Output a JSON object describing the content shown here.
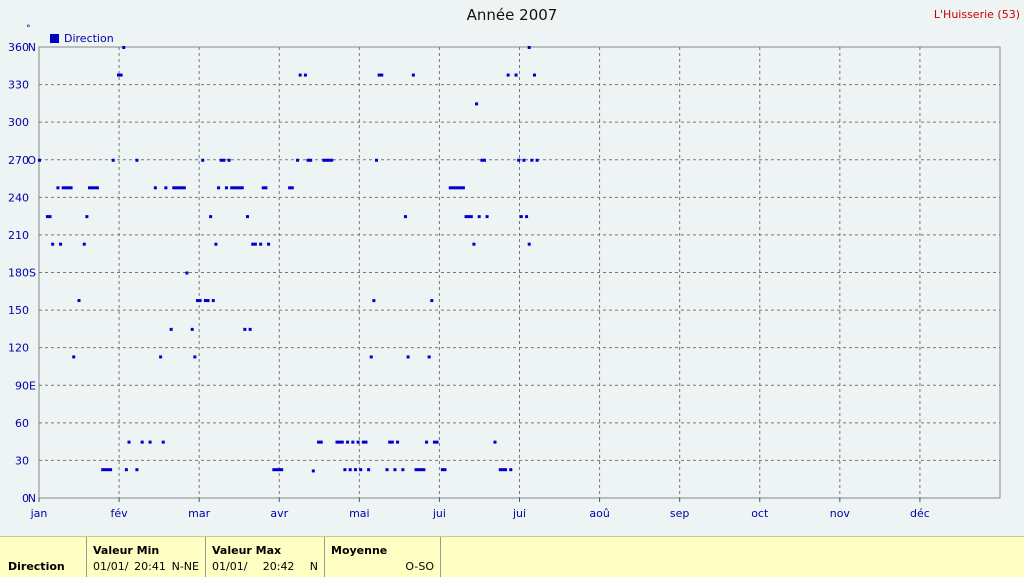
{
  "header": {
    "title": "Année 2007",
    "station": "L'Huisserie (53)",
    "degree_symbol": "°"
  },
  "legend": {
    "label": "Direction",
    "color": "#0000cc"
  },
  "chart_data": {
    "type": "scatter",
    "title": "Année 2007",
    "xlabel": "",
    "ylabel": "°",
    "x_unit": "day of year",
    "xlim": [
      0,
      365
    ],
    "ylim": [
      0,
      360
    ],
    "grid": true,
    "legend_position": "top-left",
    "month_ticks": [
      "jan",
      "fév",
      "mar",
      "avr",
      "mai",
      "jui",
      "jui",
      "aoû",
      "sep",
      "oct",
      "nov",
      "déc"
    ],
    "y_ticks": [
      {
        "v": 0,
        "label": "0",
        "dir": "N"
      },
      {
        "v": 30,
        "label": "30",
        "dir": ""
      },
      {
        "v": 60,
        "label": "60",
        "dir": ""
      },
      {
        "v": 90,
        "label": "90",
        "dir": "E"
      },
      {
        "v": 120,
        "label": "120",
        "dir": ""
      },
      {
        "v": 150,
        "label": "150",
        "dir": ""
      },
      {
        "v": 180,
        "label": "180",
        "dir": "S"
      },
      {
        "v": 210,
        "label": "210",
        "dir": ""
      },
      {
        "v": 240,
        "label": "240",
        "dir": ""
      },
      {
        "v": 270,
        "label": "270",
        "dir": "O"
      },
      {
        "v": 300,
        "label": "300",
        "dir": ""
      },
      {
        "v": 330,
        "label": "330",
        "dir": ""
      },
      {
        "v": 360,
        "label": "360",
        "dir": "N"
      }
    ],
    "series": [
      {
        "name": "Direction",
        "color": "#0000cc",
        "points": [
          [
            0,
            270
          ],
          [
            3,
            225
          ],
          [
            4,
            225
          ],
          [
            5,
            203
          ],
          [
            7,
            248
          ],
          [
            8,
            203
          ],
          [
            9,
            248
          ],
          [
            10,
            248
          ],
          [
            11,
            248
          ],
          [
            12,
            248
          ],
          [
            13,
            113
          ],
          [
            15,
            158
          ],
          [
            17,
            203
          ],
          [
            18,
            225
          ],
          [
            19,
            248
          ],
          [
            20,
            248
          ],
          [
            21,
            248
          ],
          [
            22,
            248
          ],
          [
            24,
            23
          ],
          [
            25,
            23
          ],
          [
            26,
            23
          ],
          [
            27,
            23
          ],
          [
            28,
            270
          ],
          [
            30,
            338
          ],
          [
            31,
            338
          ],
          [
            32,
            360
          ],
          [
            33,
            23
          ],
          [
            34,
            45
          ],
          [
            37,
            23
          ],
          [
            37,
            270
          ],
          [
            39,
            45
          ],
          [
            42,
            45
          ],
          [
            44,
            248
          ],
          [
            46,
            113
          ],
          [
            47,
            45
          ],
          [
            48,
            248
          ],
          [
            50,
            135
          ],
          [
            51,
            248
          ],
          [
            52,
            248
          ],
          [
            53,
            248
          ],
          [
            54,
            248
          ],
          [
            55,
            248
          ],
          [
            56,
            180
          ],
          [
            58,
            135
          ],
          [
            59,
            113
          ],
          [
            60,
            158
          ],
          [
            61,
            158
          ],
          [
            62,
            270
          ],
          [
            63,
            158
          ],
          [
            64,
            158
          ],
          [
            65,
            225
          ],
          [
            66,
            158
          ],
          [
            67,
            203
          ],
          [
            68,
            248
          ],
          [
            69,
            270
          ],
          [
            70,
            270
          ],
          [
            71,
            248
          ],
          [
            72,
            270
          ],
          [
            73,
            248
          ],
          [
            74,
            248
          ],
          [
            75,
            248
          ],
          [
            76,
            248
          ],
          [
            77,
            248
          ],
          [
            78,
            135
          ],
          [
            79,
            225
          ],
          [
            80,
            135
          ],
          [
            81,
            203
          ],
          [
            82,
            203
          ],
          [
            84,
            203
          ],
          [
            85,
            248
          ],
          [
            86,
            248
          ],
          [
            87,
            203
          ],
          [
            89,
            23
          ],
          [
            90,
            23
          ],
          [
            91,
            23
          ],
          [
            92,
            23
          ],
          [
            95,
            248
          ],
          [
            96,
            248
          ],
          [
            98,
            270
          ],
          [
            99,
            338
          ],
          [
            101,
            338
          ],
          [
            102,
            270
          ],
          [
            103,
            270
          ],
          [
            104,
            22
          ],
          [
            106,
            45
          ],
          [
            107,
            45
          ],
          [
            108,
            270
          ],
          [
            109,
            270
          ],
          [
            110,
            270
          ],
          [
            111,
            270
          ],
          [
            113,
            45
          ],
          [
            114,
            45
          ],
          [
            115,
            45
          ],
          [
            116,
            23
          ],
          [
            117,
            45
          ],
          [
            118,
            23
          ],
          [
            119,
            45
          ],
          [
            120,
            23
          ],
          [
            121,
            45
          ],
          [
            122,
            23
          ],
          [
            123,
            45
          ],
          [
            124,
            45
          ],
          [
            125,
            23
          ],
          [
            126,
            113
          ],
          [
            127,
            158
          ],
          [
            128,
            270
          ],
          [
            129,
            338
          ],
          [
            130,
            338
          ],
          [
            132,
            23
          ],
          [
            133,
            45
          ],
          [
            134,
            45
          ],
          [
            135,
            23
          ],
          [
            136,
            45
          ],
          [
            138,
            23
          ],
          [
            139,
            225
          ],
          [
            140,
            113
          ],
          [
            142,
            338
          ],
          [
            143,
            23
          ],
          [
            144,
            23
          ],
          [
            145,
            23
          ],
          [
            146,
            23
          ],
          [
            147,
            45
          ],
          [
            148,
            113
          ],
          [
            149,
            158
          ],
          [
            150,
            45
          ],
          [
            151,
            45
          ],
          [
            153,
            23
          ],
          [
            154,
            23
          ],
          [
            156,
            248
          ],
          [
            157,
            248
          ],
          [
            158,
            248
          ],
          [
            159,
            248
          ],
          [
            160,
            248
          ],
          [
            161,
            248
          ],
          [
            162,
            225
          ],
          [
            163,
            225
          ],
          [
            164,
            225
          ],
          [
            165,
            203
          ],
          [
            166,
            315
          ],
          [
            167,
            225
          ],
          [
            168,
            270
          ],
          [
            169,
            270
          ],
          [
            170,
            225
          ],
          [
            173,
            45
          ],
          [
            175,
            23
          ],
          [
            176,
            23
          ],
          [
            177,
            23
          ],
          [
            178,
            338
          ],
          [
            179,
            23
          ],
          [
            181,
            338
          ],
          [
            182,
            270
          ],
          [
            183,
            225
          ],
          [
            184,
            270
          ],
          [
            185,
            225
          ],
          [
            186,
            203
          ],
          [
            186,
            360
          ],
          [
            187,
            270
          ],
          [
            188,
            338
          ],
          [
            189,
            270
          ]
        ]
      }
    ]
  },
  "footer": {
    "series_label": "Direction",
    "min": {
      "header": "Valeur Min",
      "date": "01/01/",
      "time": "20:41",
      "dir": "N-NE"
    },
    "max": {
      "header": "Valeur Max",
      "date": "01/01/",
      "time": "20:42",
      "dir": "N"
    },
    "mean": {
      "header": "Moyenne",
      "value": "O-SO"
    }
  }
}
